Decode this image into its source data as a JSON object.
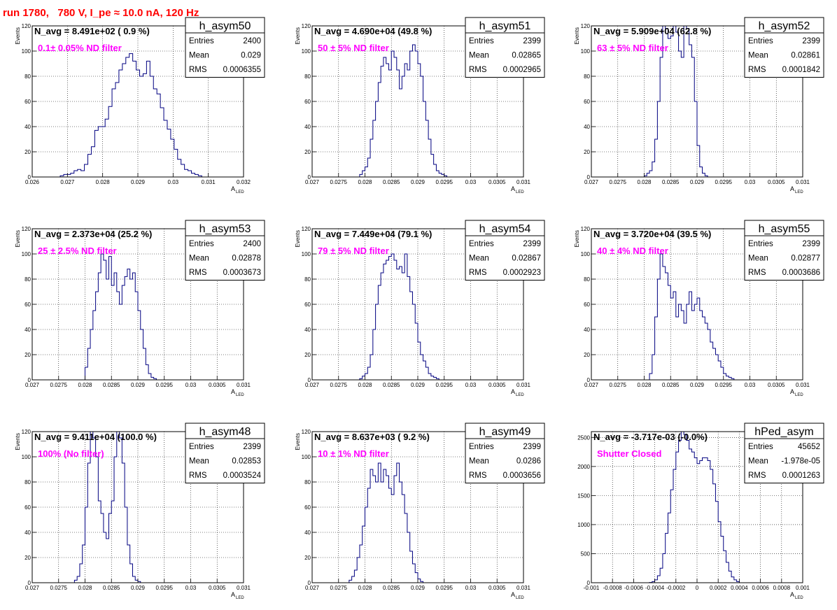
{
  "page_title": "run 1780,   780 V, I_pe ≈ 10.0 nA, 120 Hz",
  "colors": {
    "histogram": "#000080",
    "annotation": "#ff00ff",
    "run_title": "#ff0000",
    "grid": "#000000",
    "frame": "#000000"
  },
  "chart_data": [
    {
      "type": "histogram",
      "name": "h_asym50",
      "title": "N_avg = 8.491e+02 ( 0.9 %)",
      "annotation": "0.1± 0.05% ND filter",
      "xlabel": "A",
      "xlabel_sub": "LED",
      "ylabel": "Events",
      "xlim": [
        0.026,
        0.032
      ],
      "ylim": [
        0,
        120
      ],
      "xticks": [
        "0.026",
        "0.027",
        "0.028",
        "0.029",
        "0.03",
        "0.031",
        "0.032"
      ],
      "yticks": [
        "0",
        "20",
        "40",
        "60",
        "80",
        "100",
        "120"
      ],
      "stats": [
        [
          "Entries",
          "2400"
        ],
        [
          "Mean",
          "0.029"
        ],
        [
          "RMS",
          "0.0006355"
        ]
      ],
      "grid": true,
      "stats_placement": "top-right",
      "bins_range": [
        0.0266,
        0.0315
      ],
      "values": [
        0,
        0,
        1,
        2,
        2,
        3,
        5,
        6,
        5,
        10,
        18,
        24,
        37,
        40,
        40,
        46,
        56,
        70,
        75,
        85,
        90,
        95,
        98,
        92,
        85,
        80,
        82,
        92,
        80,
        70,
        66,
        55,
        45,
        38,
        30,
        22,
        14,
        10,
        6,
        5,
        3,
        2,
        1,
        0,
        0,
        0,
        0,
        0,
        0,
        0
      ]
    },
    {
      "type": "histogram",
      "name": "h_asym51",
      "title": "N_avg = 4.690e+04 (49.8 %)",
      "annotation": "50 ± 5% ND filter",
      "xlabel": "A",
      "xlabel_sub": "LED",
      "ylabel": "Events",
      "xlim": [
        0.027,
        0.031
      ],
      "ylim": [
        0,
        120
      ],
      "xticks": [
        "0.027",
        "0.0275",
        "0.028",
        "0.0285",
        "0.029",
        "0.0295",
        "0.03",
        "0.0305",
        "0.031"
      ],
      "yticks": [
        "0",
        "20",
        "40",
        "60",
        "80",
        "100",
        "120"
      ],
      "stats": [
        [
          "Entries",
          "2399"
        ],
        [
          "Mean",
          "0.02865"
        ],
        [
          "RMS",
          "0.0002965"
        ]
      ],
      "grid": true,
      "stats_placement": "top-right",
      "bins_range": [
        0.0279,
        0.0297
      ],
      "values": [
        2,
        5,
        8,
        15,
        30,
        45,
        60,
        75,
        88,
        95,
        90,
        85,
        100,
        95,
        85,
        70,
        80,
        90,
        85,
        100,
        105,
        100,
        90,
        80,
        60,
        45,
        30,
        18,
        10,
        5,
        3,
        2,
        1,
        0,
        0,
        0
      ]
    },
    {
      "type": "histogram",
      "name": "h_asym52",
      "title": "N_avg = 5.909e+04 (62.8 %)",
      "annotation": "63 ± 5% ND filter",
      "xlabel": "A",
      "xlabel_sub": "LED",
      "ylabel": "Events",
      "xlim": [
        0.027,
        0.031
      ],
      "ylim": [
        0,
        120
      ],
      "xticks": [
        "0.027",
        "0.0275",
        "0.028",
        "0.0285",
        "0.029",
        "0.0295",
        "0.03",
        "0.0305",
        "0.031"
      ],
      "yticks": [
        "0",
        "20",
        "40",
        "60",
        "80",
        "100",
        "120"
      ],
      "stats": [
        [
          "Entries",
          "2399"
        ],
        [
          "Mean",
          "0.02861"
        ],
        [
          "RMS",
          "0.0001842"
        ]
      ],
      "grid": true,
      "stats_placement": "top-right",
      "bins_range": [
        0.028,
        0.0295
      ],
      "values": [
        1,
        3,
        5,
        12,
        30,
        60,
        95,
        120,
        118,
        110,
        112,
        120,
        115,
        100,
        95,
        120,
        118,
        105,
        95,
        60,
        25,
        8,
        3,
        1,
        0,
        0,
        0,
        0,
        0,
        0
      ]
    },
    {
      "type": "histogram",
      "name": "h_asym53",
      "title": "N_avg = 2.373e+04 (25.2 %)",
      "annotation": "25 ± 2.5% ND filter",
      "xlabel": "A",
      "xlabel_sub": "LED",
      "ylabel": "Events",
      "xlim": [
        0.027,
        0.031
      ],
      "ylim": [
        0,
        120
      ],
      "xticks": [
        "0.027",
        "0.0275",
        "0.028",
        "0.0285",
        "0.029",
        "0.0295",
        "0.03",
        "0.0305",
        "0.031"
      ],
      "yticks": [
        "0",
        "20",
        "40",
        "60",
        "80",
        "100",
        "120"
      ],
      "stats": [
        [
          "Entries",
          "2400"
        ],
        [
          "Mean",
          "0.02878"
        ],
        [
          "RMS",
          "0.0003673"
        ]
      ],
      "grid": true,
      "stats_placement": "top-right",
      "bins_range": [
        0.028,
        0.0298
      ],
      "values": [
        10,
        25,
        40,
        55,
        70,
        85,
        100,
        95,
        80,
        98,
        75,
        85,
        70,
        60,
        75,
        82,
        88,
        80,
        85,
        70,
        55,
        40,
        25,
        12,
        5,
        2,
        1,
        0,
        0,
        0,
        0,
        0,
        0,
        0,
        0,
        0
      ]
    },
    {
      "type": "histogram",
      "name": "h_asym54",
      "title": "N_avg = 7.449e+04 (79.1 %)",
      "annotation": "79 ± 5% ND filter",
      "xlabel": "A",
      "xlabel_sub": "LED",
      "ylabel": "Events",
      "xlim": [
        0.027,
        0.031
      ],
      "ylim": [
        0,
        120
      ],
      "xticks": [
        "0.027",
        "0.0275",
        "0.028",
        "0.0285",
        "0.029",
        "0.0295",
        "0.03",
        "0.0305",
        "0.031"
      ],
      "yticks": [
        "0",
        "20",
        "40",
        "60",
        "80",
        "100",
        "120"
      ],
      "stats": [
        [
          "Entries",
          "2399"
        ],
        [
          "Mean",
          "0.02867"
        ],
        [
          "RMS",
          "0.0002923"
        ]
      ],
      "grid": true,
      "stats_placement": "top-right",
      "bins_range": [
        0.0279,
        0.0297
      ],
      "values": [
        1,
        3,
        5,
        10,
        20,
        40,
        60,
        75,
        85,
        92,
        95,
        98,
        100,
        95,
        88,
        90,
        85,
        100,
        82,
        70,
        60,
        45,
        30,
        20,
        15,
        10,
        5,
        3,
        2,
        1,
        0,
        0,
        0,
        0,
        0,
        0
      ]
    },
    {
      "type": "histogram",
      "name": "h_asym55",
      "title": "N_avg = 3.720e+04 (39.5 %)",
      "annotation": "40 ± 4% ND filter",
      "xlabel": "A",
      "xlabel_sub": "LED",
      "ylabel": "Events",
      "xlim": [
        0.027,
        0.031
      ],
      "ylim": [
        0,
        120
      ],
      "xticks": [
        "0.027",
        "0.0275",
        "0.028",
        "0.0285",
        "0.029",
        "0.0295",
        "0.03",
        "0.0305",
        "0.031"
      ],
      "yticks": [
        "0",
        "20",
        "40",
        "60",
        "80",
        "100",
        "120"
      ],
      "stats": [
        [
          "Entries",
          "2399"
        ],
        [
          "Mean",
          "0.02877"
        ],
        [
          "RMS",
          "0.0003686"
        ]
      ],
      "grid": true,
      "stats_placement": "top-right",
      "bins_range": [
        0.0281,
        0.0299
      ],
      "values": [
        5,
        20,
        50,
        80,
        100,
        90,
        85,
        75,
        65,
        70,
        50,
        60,
        55,
        45,
        60,
        70,
        55,
        60,
        65,
        55,
        50,
        45,
        40,
        30,
        25,
        20,
        15,
        10,
        5,
        3,
        2,
        1,
        0,
        0,
        0,
        0
      ]
    },
    {
      "type": "histogram",
      "name": "h_asym48",
      "title": "N_avg = 9.411e+04 (100.0 %)",
      "annotation": "100% (No filter)",
      "xlabel": "A",
      "xlabel_sub": "LED",
      "ylabel": "Events",
      "xlim": [
        0.027,
        0.031
      ],
      "ylim": [
        0,
        120
      ],
      "xticks": [
        "0.027",
        "0.0275",
        "0.028",
        "0.0285",
        "0.029",
        "0.0295",
        "0.03",
        "0.0305",
        "0.031"
      ],
      "yticks": [
        "0",
        "20",
        "40",
        "60",
        "80",
        "100",
        "120"
      ],
      "stats": [
        [
          "Entries",
          "2399"
        ],
        [
          "Mean",
          "0.02853"
        ],
        [
          "RMS",
          "0.0003524"
        ]
      ],
      "grid": true,
      "stats_placement": "top-right",
      "bins_range": [
        0.0278,
        0.0296
      ],
      "values": [
        2,
        5,
        15,
        30,
        60,
        95,
        120,
        115,
        100,
        65,
        55,
        40,
        35,
        55,
        65,
        100,
        120,
        115,
        95,
        60,
        30,
        15,
        5,
        2,
        1,
        0,
        0,
        0,
        0,
        0,
        0,
        0,
        0,
        0,
        0,
        0
      ]
    },
    {
      "type": "histogram",
      "name": "h_asym49",
      "title": "N_avg = 8.637e+03 ( 9.2 %)",
      "annotation": "10 ± 1% ND filter",
      "xlabel": "A",
      "xlabel_sub": "LED",
      "ylabel": "Events",
      "xlim": [
        0.027,
        0.031
      ],
      "ylim": [
        0,
        120
      ],
      "xticks": [
        "0.027",
        "0.0275",
        "0.028",
        "0.0285",
        "0.029",
        "0.0295",
        "0.03",
        "0.0305",
        "0.031"
      ],
      "yticks": [
        "0",
        "20",
        "40",
        "60",
        "80",
        "100",
        "120"
      ],
      "stats": [
        [
          "Entries",
          "2399"
        ],
        [
          "Mean",
          "0.0286"
        ],
        [
          "RMS",
          "0.0003656"
        ]
      ],
      "grid": true,
      "stats_placement": "top-right",
      "bins_range": [
        0.0277,
        0.0299
      ],
      "values": [
        2,
        5,
        10,
        20,
        30,
        45,
        60,
        75,
        90,
        85,
        80,
        95,
        80,
        90,
        85,
        75,
        70,
        85,
        95,
        80,
        70,
        55,
        40,
        25,
        15,
        8,
        3,
        1,
        0,
        0,
        0,
        0,
        0,
        0,
        0,
        0,
        0,
        0,
        0,
        0,
        0,
        0,
        0,
        0
      ]
    },
    {
      "type": "histogram",
      "name": "hPed_asym",
      "title": "N_avg = -3.717e-03 (-0.0%)",
      "annotation": "Shutter Closed",
      "xlabel": "A",
      "xlabel_sub": "LED",
      "ylabel": "",
      "xlim": [
        -0.001,
        0.001
      ],
      "ylim": [
        0,
        2600
      ],
      "xticks": [
        "-0.001",
        "-0.0008",
        "-0.0006",
        "-0.0004",
        "-0.0002",
        "0",
        "0.0002",
        "0.0004",
        "0.0006",
        "0.0008",
        "0.001"
      ],
      "yticks": [
        "0",
        "500",
        "1000",
        "1500",
        "2000",
        "2500"
      ],
      "stats": [
        [
          "Entries",
          "45652"
        ],
        [
          "Mean",
          "-1.978e-05"
        ],
        [
          "RMS",
          "0.0001263"
        ]
      ],
      "grid": true,
      "stats_placement": "top-right",
      "bins_range": [
        -0.00045,
        0.0004
      ],
      "values": [
        5,
        20,
        50,
        120,
        250,
        500,
        850,
        1200,
        1600,
        1950,
        2250,
        2450,
        2600,
        2550,
        2450,
        2300,
        2250,
        2150,
        2050,
        2100,
        2150,
        2150,
        2100,
        1950,
        1700,
        1400,
        1050,
        800,
        550,
        350,
        200,
        100,
        50,
        20
      ]
    }
  ]
}
